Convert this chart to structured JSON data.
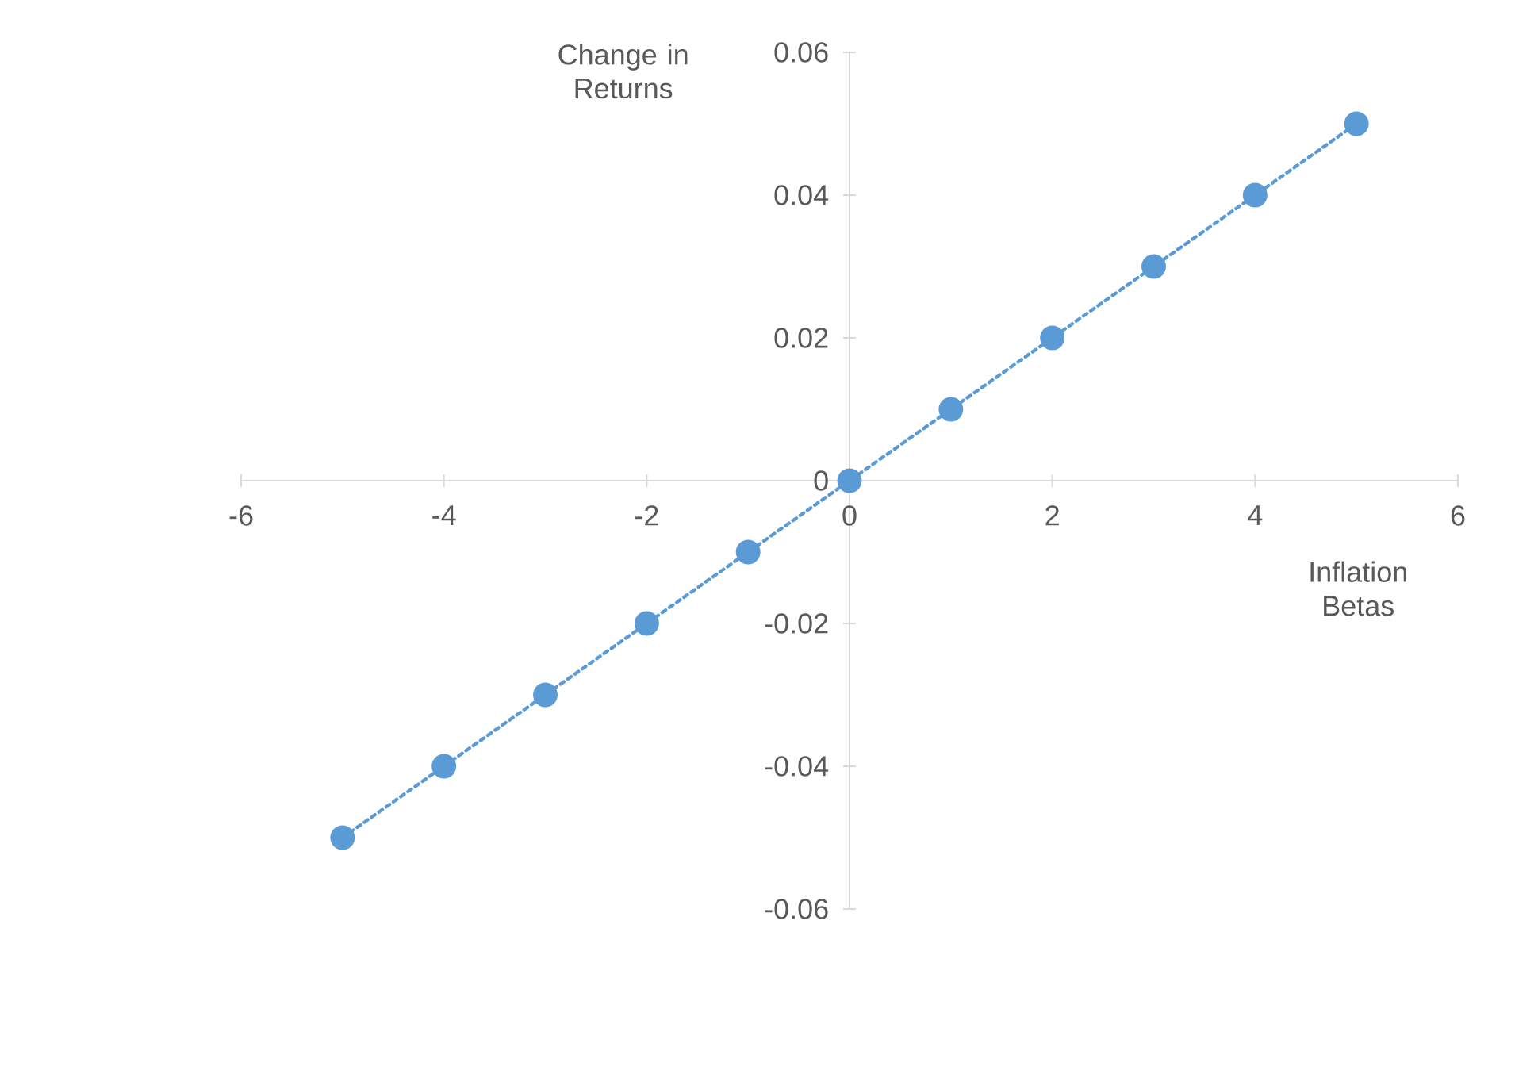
{
  "chart_data": {
    "type": "line",
    "xlabel": "Inflation Betas",
    "ylabel": "Change in Returns",
    "x": [
      -5,
      -4,
      -3,
      -2,
      -1,
      0,
      1,
      2,
      3,
      4,
      5
    ],
    "values": [
      -0.05,
      -0.04,
      -0.03,
      -0.02,
      -0.01,
      0,
      0.01,
      0.02,
      0.03,
      0.04,
      0.05
    ],
    "color": "#5b9bd5",
    "marker": "circle",
    "line_style": "dotted",
    "xlim": [
      -6,
      6
    ],
    "ylim": [
      -0.06,
      0.06
    ],
    "xticks": [
      -6,
      -4,
      -2,
      0,
      2,
      4,
      6
    ],
    "yticks": [
      -0.06,
      -0.04,
      -0.02,
      0,
      0.02,
      0.04,
      0.06
    ]
  }
}
